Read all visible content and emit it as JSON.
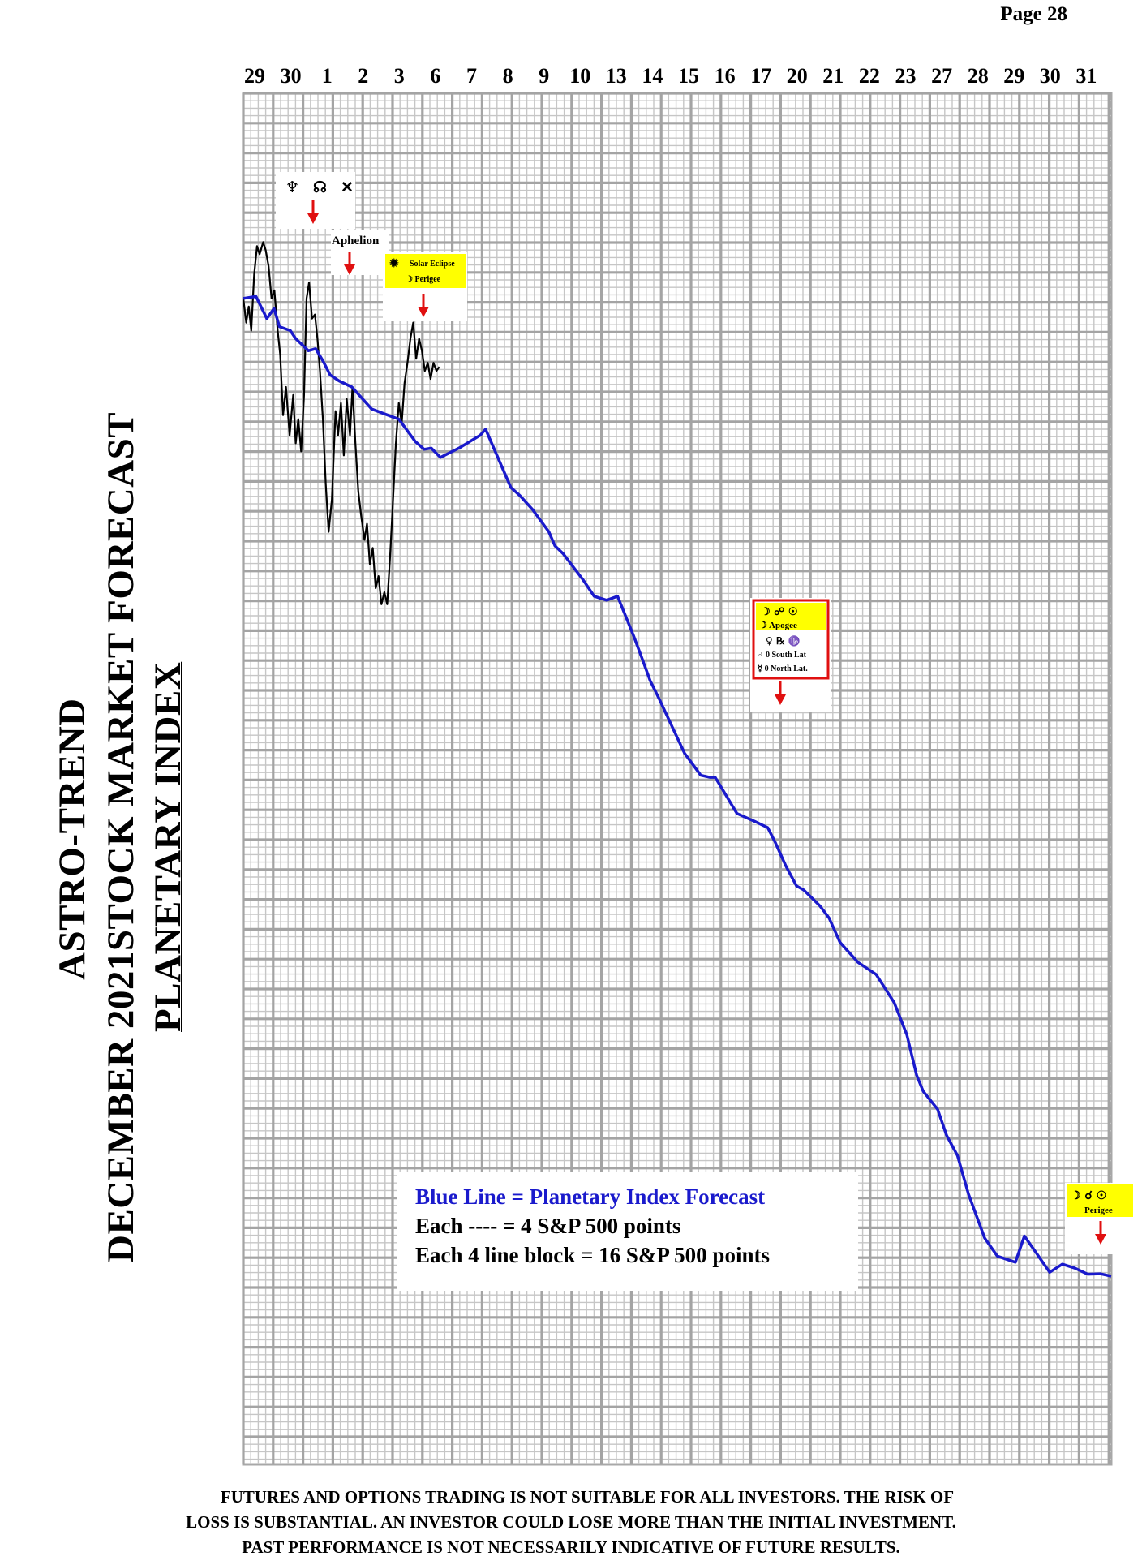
{
  "page": {
    "number_label": "Page  28"
  },
  "title": {
    "line1": "ASTRO-TREND",
    "line2": "DECEMBER 2021STOCK MARKET FORECAST",
    "line3": "PLANETARY INDEX"
  },
  "colors": {
    "forecast_line": "#1a1acc",
    "price_line": "#000000",
    "grid": "#b4b4b4",
    "arrow": "#e01010",
    "event_box": "#ffff00",
    "event_border": "#e01010"
  },
  "chart_data": {
    "type": "line",
    "xlabel": "",
    "ylabel": "",
    "x_tick_labels": [
      "29",
      "30",
      "1",
      "2",
      "3",
      "6",
      "7",
      "8",
      "9",
      "10",
      "13",
      "14",
      "15",
      "16",
      "17",
      "20",
      "21",
      "22",
      "23",
      "27",
      "28",
      "29",
      "30",
      "31"
    ],
    "grid": true,
    "legend": {
      "line1": "Blue Line = Planetary Index Forecast",
      "line2": "Each ---- =   4 S&P 500 points",
      "line3": "Each 4 line block =  16  S&P 500 points"
    },
    "series": [
      {
        "name": "Blue Line = Planetary Index Forecast",
        "color": "#1a1acc",
        "x": [
          0.0,
          0.35,
          0.65,
          0.85,
          1.0,
          1.3,
          1.45,
          1.8,
          2.0,
          2.2,
          2.4,
          2.65,
          3.0,
          3.55,
          3.7,
          4.0,
          4.15,
          4.3,
          4.75,
          5.0,
          5.2,
          5.45,
          6.0,
          6.55,
          6.7,
          7.4,
          7.65,
          8.0,
          8.45,
          8.62,
          8.85,
          9.4,
          9.7,
          10.05,
          10.35,
          10.8,
          11.05,
          11.25,
          11.5,
          12.2,
          12.65,
          12.9,
          13.05,
          13.65,
          14.15,
          14.5,
          14.7,
          15.0,
          15.3,
          15.5,
          15.95,
          16.2,
          16.5,
          17.0,
          17.5,
          18.0,
          18.35,
          18.62,
          18.8,
          19.2,
          19.45,
          19.75,
          20.05,
          20.5,
          20.85,
          21.35,
          21.6,
          21.95,
          22.3,
          22.65,
          23.0,
          23.35,
          23.7,
          24.0
        ],
        "y": [
          146,
          146.5,
          141,
          143.5,
          139,
          138,
          136,
          133,
          133.5,
          130.5,
          127,
          125.5,
          124,
          118.5,
          118,
          117,
          116.5,
          116,
          110.5,
          108.5,
          108.8,
          106.5,
          109,
          112,
          113.5,
          99,
          97,
          93.5,
          88,
          84.5,
          82.5,
          76,
          72,
          71,
          72,
          62,
          56,
          51,
          46.5,
          33,
          27.5,
          27,
          27,
          18,
          16,
          14.5,
          11,
          5,
          0,
          -1,
          -5,
          -8,
          -14,
          -19,
          -22,
          -29,
          -37,
          -47,
          -51,
          -55.5,
          -62,
          -67,
          -76.5,
          -87.5,
          -92,
          -93.5,
          -87,
          -91.5,
          -96,
          -94,
          -95,
          -96.5,
          -96.4,
          -97
        ]
      },
      {
        "name": "",
        "color": "#000000",
        "x": [
          0.0,
          0.08,
          0.15,
          0.22,
          0.3,
          0.38,
          0.45,
          0.55,
          0.62,
          0.7,
          0.78,
          0.86,
          0.95,
          1.02,
          1.1,
          1.18,
          1.28,
          1.38,
          1.45,
          1.52,
          1.6,
          1.68,
          1.75,
          1.82,
          1.9,
          1.98,
          2.05,
          2.12,
          2.2,
          2.28,
          2.36,
          2.45,
          2.55,
          2.62,
          2.7,
          2.78,
          2.86,
          2.95,
          3.02,
          3.1,
          3.18,
          3.26,
          3.35,
          3.42,
          3.5,
          3.58,
          3.66,
          3.74,
          3.82,
          3.9,
          3.98,
          4.06,
          4.14,
          4.22,
          4.3,
          4.38,
          4.46,
          4.54,
          4.62,
          4.7,
          4.78,
          4.86,
          4.94,
          5.02,
          5.1,
          5.18,
          5.26,
          5.34,
          5.42
        ],
        "y": [
          146,
          140,
          144,
          138,
          152,
          159,
          157,
          160,
          158,
          154,
          146,
          148,
          138,
          132,
          117,
          124,
          112,
          122,
          110,
          116,
          108,
          122,
          146,
          150,
          141,
          142,
          136,
          128,
          116,
          100,
          88,
          96,
          118,
          112,
          120,
          107,
          121,
          112,
          124,
          110,
          98,
          92,
          86,
          90,
          80,
          84,
          74,
          77,
          70,
          73,
          70,
          82,
          96,
          110,
          120,
          115,
          125,
          130,
          136,
          140,
          131,
          136,
          133,
          128,
          130,
          126,
          130,
          128,
          129
        ]
      }
    ],
    "annotations": [
      {
        "name": "event-nov30",
        "labels": [
          "♆",
          "☊",
          "✕"
        ]
      },
      {
        "name": "event-dec1",
        "labels": [
          "Aphelion"
        ]
      },
      {
        "name": "event-dec3",
        "labels": [
          "Solar Eclipse",
          "☽ Perigee"
        ]
      },
      {
        "name": "event-dec17",
        "labels": [
          "☽ ☍ ☉",
          "☽ Apogee",
          "♀ ℞ ♑",
          "♂ 0 South Lat",
          "☿ 0 North Lat."
        ]
      },
      {
        "name": "event-dec31",
        "labels": [
          "☽ ☌ ☉",
          "Perigee"
        ]
      }
    ]
  },
  "disclaimer": {
    "line1": "FUTURES AND OPTIONS TRADING IS NOT SUITABLE FOR ALL INVESTORS.  THE RISK OF",
    "line2": "LOSS IS SUBSTANTIAL.  AN INVESTOR COULD LOSE MORE THAN THE INITIAL INVESTMENT.",
    "line3": "PAST PERFORMANCE IS NOT NECESSARILY INDICATIVE OF FUTURE RESULTS."
  }
}
